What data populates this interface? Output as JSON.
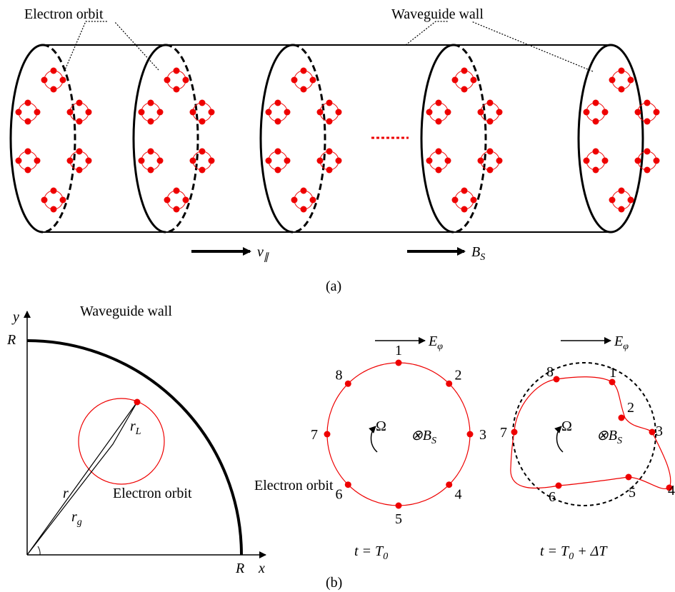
{
  "panel_a": {
    "orbit_label": "Electron orbit",
    "wall_label": "Waveguide wall",
    "velocity": {
      "main": "v",
      "sub": "∥"
    },
    "field": {
      "main": "B",
      "sub": "S"
    },
    "caption": "(a)"
  },
  "panel_b": {
    "quarter": {
      "y_axis": "y",
      "x_axis": "x",
      "radius_y": "R",
      "radius_x": "R",
      "wall_label": "Waveguide wall",
      "r": "r",
      "r_g": {
        "main": "r",
        "sub": "g"
      },
      "r_L": {
        "main": "r",
        "sub": "L"
      },
      "orbit_label": "Electron orbit"
    },
    "orbit_t0": {
      "field": {
        "main": "E",
        "sub": "φ"
      },
      "omega": "Ω",
      "bfield": {
        "main": "⊗B",
        "sub": "S"
      },
      "points": [
        "1",
        "2",
        "3",
        "4",
        "5",
        "6",
        "7",
        "8"
      ],
      "orbit_label": "Electron orbit",
      "time": {
        "pre": "t = T",
        "sub": "0",
        "post": ""
      }
    },
    "orbit_t1": {
      "field": {
        "main": "E",
        "sub": "φ"
      },
      "omega": "Ω",
      "bfield": {
        "main": "⊗B",
        "sub": "S"
      },
      "points": [
        "1",
        "2",
        "3",
        "4",
        "5",
        "6",
        "7",
        "8"
      ],
      "time": {
        "pre": "t = T",
        "sub": "0",
        "post": " + ΔT"
      }
    },
    "caption": "(b)"
  }
}
